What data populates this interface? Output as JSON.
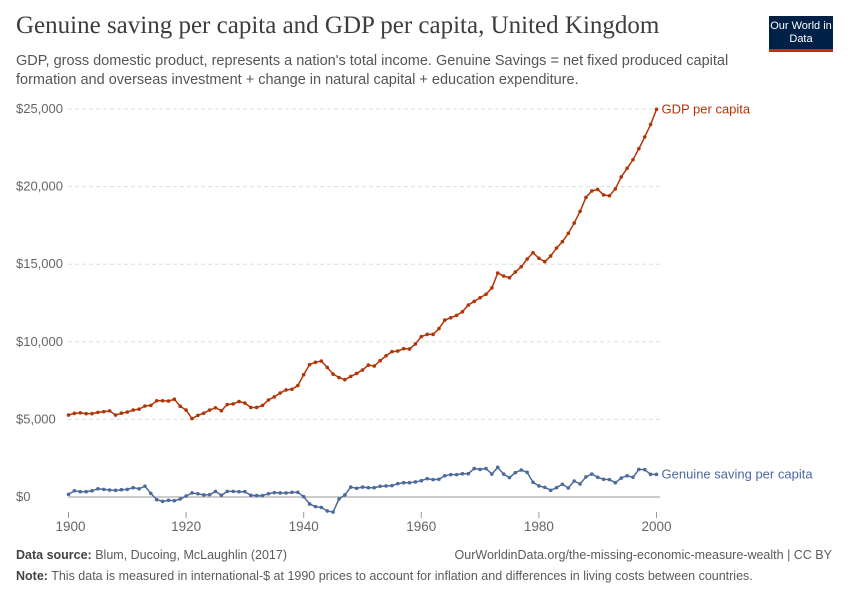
{
  "header": {
    "title": "Genuine saving per capita and GDP per capita, United Kingdom",
    "subtitle": "GDP, gross domestic product, represents a nation's total income. Genuine Savings = net fixed produced capital formation and overseas investment + change in natural capital + education expenditure.",
    "logo": "Our World in Data"
  },
  "footer": {
    "source_label": "Data source:",
    "source": "Blum, Ducoing, McLaughlin (2017)",
    "url": "OurWorldinData.org/the-missing-economic-measure-wealth | CC BY",
    "note_label": "Note:",
    "note": "This data is measured in international-$ at 1990 prices to account for inflation and differences in living costs between countries."
  },
  "chart_data": {
    "type": "line",
    "title": "Genuine saving per capita and GDP per capita, United Kingdom",
    "xlim": [
      1900,
      2000
    ],
    "ylim": [
      -1000,
      25000
    ],
    "x_ticks": [
      1900,
      1920,
      1940,
      1960,
      1980,
      2000
    ],
    "x_tick_labels": [
      "1900",
      "1920",
      "1940",
      "1960",
      "1980",
      "2000"
    ],
    "y_ticks": [
      0,
      5000,
      10000,
      15000,
      20000,
      25000
    ],
    "y_tick_labels": [
      "$0",
      "$5,000",
      "$10,000",
      "$15,000",
      "$20,000",
      "$25,000"
    ],
    "grid": "horizontal dashed",
    "legend": "inline labels at line ends (right)",
    "x_start": 1900,
    "series": [
      {
        "name": "GDP per capita",
        "color": "#b13507",
        "values": [
          5280,
          5390,
          5420,
          5370,
          5370,
          5450,
          5500,
          5550,
          5280,
          5400,
          5470,
          5600,
          5660,
          5860,
          5900,
          6200,
          6200,
          6180,
          6300,
          5850,
          5600,
          5050,
          5260,
          5400,
          5600,
          5750,
          5560,
          5960,
          6000,
          6150,
          6050,
          5770,
          5770,
          5900,
          6250,
          6450,
          6700,
          6900,
          6940,
          7180,
          7880,
          8530,
          8680,
          8760,
          8350,
          7920,
          7700,
          7560,
          7770,
          7960,
          8180,
          8500,
          8440,
          8780,
          9100,
          9360,
          9400,
          9560,
          9540,
          9860,
          10330,
          10480,
          10480,
          10850,
          11400,
          11550,
          11700,
          11940,
          12370,
          12600,
          12840,
          13060,
          13470,
          14430,
          14240,
          14130,
          14500,
          14840,
          15330,
          15740,
          15380,
          15160,
          15530,
          16040,
          16450,
          16990,
          17650,
          18400,
          19300,
          19720,
          19820,
          19460,
          19410,
          19850,
          20620,
          21180,
          21730,
          22440,
          23200,
          24000,
          24980
        ]
      },
      {
        "name": "Genuine saving per capita",
        "color": "#4c6a9c",
        "values": [
          170,
          400,
          340,
          340,
          400,
          530,
          490,
          450,
          430,
          470,
          490,
          600,
          530,
          700,
          230,
          -170,
          -280,
          -210,
          -240,
          -130,
          60,
          260,
          210,
          130,
          150,
          360,
          110,
          360,
          360,
          340,
          340,
          110,
          90,
          90,
          210,
          280,
          260,
          260,
          300,
          300,
          20,
          -450,
          -620,
          -670,
          -900,
          -970,
          -130,
          130,
          640,
          560,
          640,
          600,
          600,
          690,
          710,
          730,
          860,
          920,
          920,
          970,
          1050,
          1180,
          1120,
          1140,
          1370,
          1440,
          1440,
          1500,
          1500,
          1830,
          1780,
          1830,
          1480,
          1910,
          1480,
          1250,
          1570,
          1740,
          1590,
          950,
          710,
          620,
          430,
          600,
          820,
          580,
          1030,
          840,
          1290,
          1480,
          1270,
          1140,
          1120,
          920,
          1220,
          1370,
          1270,
          1780,
          1760,
          1460,
          1460
        ]
      }
    ]
  }
}
